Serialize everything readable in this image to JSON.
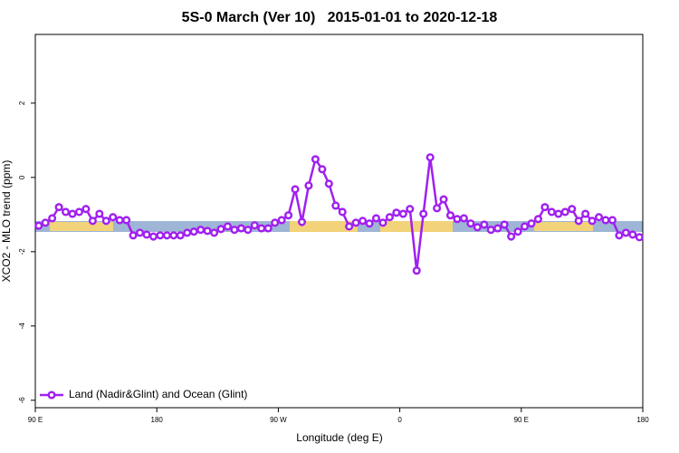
{
  "chart_data": {
    "type": "line",
    "title": "5S-0 March (Ver 10)   2015-01-01 to 2020-12-18",
    "xlabel": "Longitude (deg E)",
    "ylabel": "XCO2 - MLO trend (ppm)",
    "xlim": [
      90,
      540
    ],
    "ylim": [
      -6.2,
      3.85
    ],
    "xticks": [
      {
        "value": 90,
        "label": "90 E"
      },
      180,
      {
        "value": 270,
        "label": "90 W"
      },
      {
        "value": 360,
        "label": "0"
      },
      {
        "value": 450,
        "label": "90 E"
      },
      {
        "value": 540,
        "label": "180"
      }
    ],
    "yticks": [
      -6,
      -4,
      -2,
      0,
      2
    ],
    "legend": "bottom-left",
    "series": [
      {
        "name": "Land (Nadir&Glint) and Ocean (Glint)",
        "color": "#a020f0",
        "x": [
          92.5,
          97.5,
          102.5,
          107.5,
          112.5,
          117.5,
          122.5,
          127.5,
          132.5,
          137.5,
          142.5,
          147.5,
          152.5,
          157.5,
          162.5,
          167.5,
          172.5,
          177.5,
          182.5,
          187.5,
          192.5,
          197.5,
          202.5,
          207.5,
          212.5,
          217.5,
          222.5,
          227.5,
          232.5,
          237.5,
          242.5,
          247.5,
          252.5,
          257.5,
          262.5,
          267.5,
          272.5,
          277.5,
          282.5,
          287.5,
          292.5,
          297.5,
          302.5,
          307.5,
          312.5,
          317.5,
          322.5,
          327.5,
          332.5,
          337.5,
          342.5,
          347.5,
          352.5,
          357.5,
          362.5,
          367.5,
          372.5,
          377.5,
          382.5,
          387.5,
          392.5,
          397.5,
          402.5,
          407.5,
          412.5,
          417.5,
          422.5,
          427.5,
          432.5,
          437.5,
          442.5,
          447.5,
          452.5,
          457.5,
          462.5,
          467.5,
          472.5,
          477.5,
          482.5,
          487.5,
          492.5,
          497.5,
          502.5,
          507.5,
          512.5,
          517.5,
          522.5,
          527.5,
          532.5,
          537.5
        ],
        "values": [
          -1.3,
          -1.22,
          -1.1,
          -0.8,
          -0.93,
          -0.98,
          -0.93,
          -0.85,
          -1.17,
          -0.98,
          -1.17,
          -1.07,
          -1.15,
          -1.15,
          -1.56,
          -1.49,
          -1.54,
          -1.59,
          -1.56,
          -1.56,
          -1.56,
          -1.56,
          -1.49,
          -1.46,
          -1.41,
          -1.44,
          -1.49,
          -1.39,
          -1.32,
          -1.41,
          -1.37,
          -1.41,
          -1.29,
          -1.37,
          -1.37,
          -1.22,
          -1.15,
          -1.02,
          -0.32,
          -1.2,
          -0.22,
          0.49,
          0.22,
          -0.17,
          -0.76,
          -0.93,
          -1.32,
          -1.22,
          -1.17,
          -1.24,
          -1.1,
          -1.22,
          -1.07,
          -0.95,
          -0.98,
          -0.85,
          -2.51,
          -0.98,
          0.54,
          -0.83,
          -0.59,
          -1.02,
          -1.12,
          -1.1,
          -1.24,
          -1.34,
          -1.27,
          -1.41,
          -1.37,
          -1.27,
          -1.59,
          -1.46,
          -1.32,
          -1.24,
          -1.12,
          -0.8,
          -0.93,
          -0.98,
          -0.93,
          -0.85,
          -1.17,
          -0.98,
          -1.17,
          -1.07,
          -1.15,
          -1.15,
          -1.56,
          -1.49,
          -1.54,
          -1.61
        ]
      }
    ]
  }
}
